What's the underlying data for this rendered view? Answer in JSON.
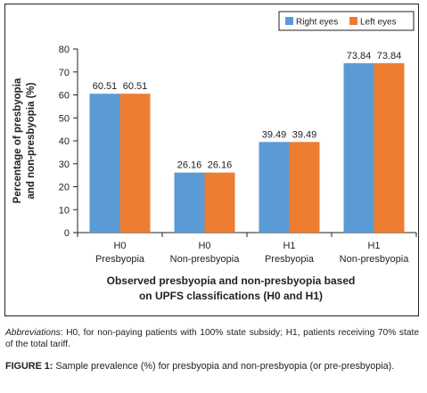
{
  "chart_data": {
    "type": "bar",
    "categories": [
      [
        "H0",
        "Presbyopia"
      ],
      [
        "H0",
        "Non-presbyopia"
      ],
      [
        "H1",
        "Presbyopia"
      ],
      [
        "H1",
        "Non-presbyopia"
      ]
    ],
    "series": [
      {
        "name": "Right eyes",
        "values": [
          60.51,
          26.16,
          39.49,
          73.84
        ],
        "color": "#5b9bd5"
      },
      {
        "name": "Left eyes",
        "values": [
          60.51,
          26.16,
          39.49,
          73.84
        ],
        "color": "#ed7d31"
      }
    ],
    "ylabel_lines": [
      "Percentage of presbyopia",
      "and non-presbyopia (%)"
    ],
    "xlabel_lines": [
      "Observed presbyopia and non-presbyopia based",
      "on UPFS classifications (H0 and H1)"
    ],
    "ylim": [
      0,
      80
    ],
    "yticks": [
      0,
      10,
      20,
      30,
      40,
      50,
      60,
      70,
      80
    ],
    "legend_position": "top-right",
    "grid": false
  },
  "footnote": {
    "label": "Abbreviations",
    "text": ": H0, for non-paying patients with 100% state subsidy; H1, patients receiving 70% state of the total tariff."
  },
  "caption": {
    "label": "FIGURE 1:",
    "text": " Sample prevalence (%) for presbyopia and non-presbyopia (or pre-presbyopia)."
  }
}
